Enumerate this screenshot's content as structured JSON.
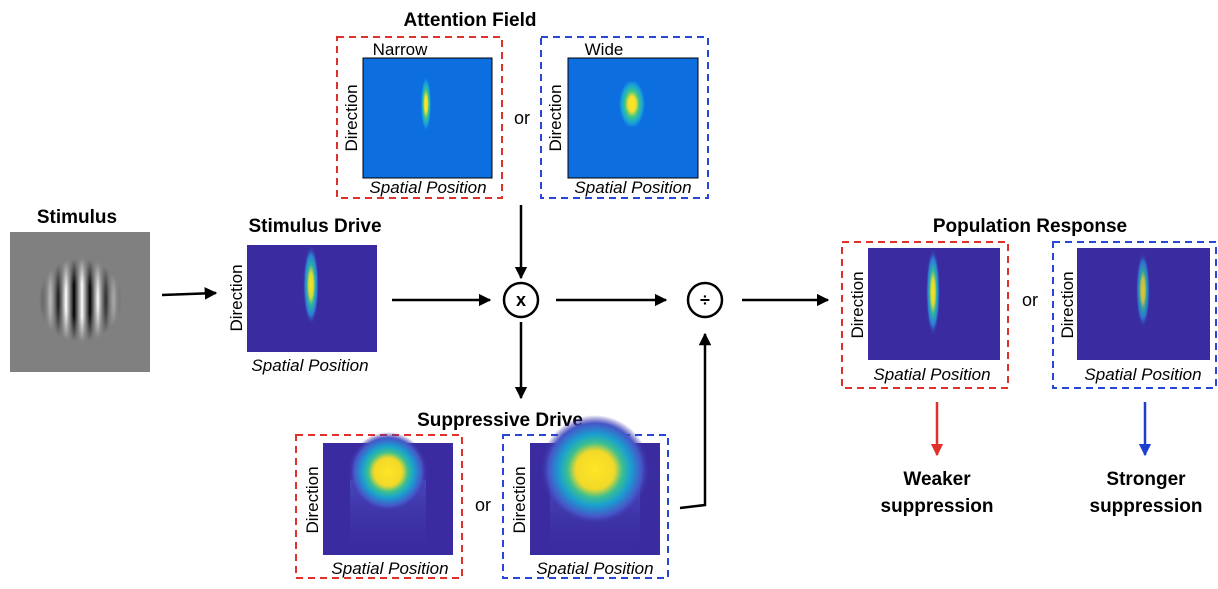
{
  "attention_field": {
    "title": "Attention Field",
    "separator": "or",
    "panels": [
      {
        "label": "Narrow",
        "y_label": "Direction",
        "x_label": "Spatial Position"
      },
      {
        "label": "Wide",
        "y_label": "Direction",
        "x_label": "Spatial Position"
      }
    ]
  },
  "stimulus": {
    "title": "Stimulus"
  },
  "stimulus_drive": {
    "title": "Stimulus Drive",
    "y_label": "Direction",
    "x_label": "Spatial Position"
  },
  "operators": {
    "multiply": "x",
    "divide": "÷"
  },
  "suppressive_drive": {
    "title": "Suppressive Drive",
    "separator": "or",
    "panels": [
      {
        "y_label": "Direction",
        "x_label": "Spatial Position"
      },
      {
        "y_label": "Direction",
        "x_label": "Spatial Position"
      }
    ]
  },
  "population_response": {
    "title": "Population Response",
    "separator": "or",
    "panels": [
      {
        "y_label": "Direction",
        "x_label": "Spatial Position"
      },
      {
        "y_label": "Direction",
        "x_label": "Spatial Position"
      }
    ],
    "outcomes": [
      {
        "lines": [
          "Weaker",
          "suppression"
        ]
      },
      {
        "lines": [
          "Stronger",
          "suppression"
        ]
      }
    ]
  }
}
